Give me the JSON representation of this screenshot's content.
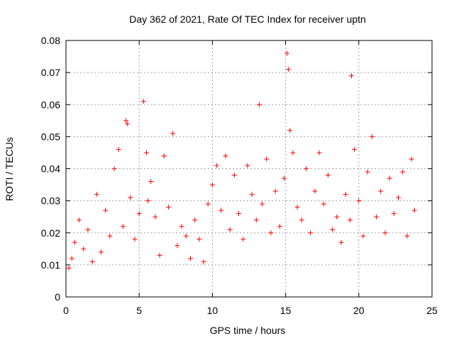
{
  "chart_data": {
    "type": "scatter",
    "title": "Day 362 of 2021, Rate Of TEC Index for receiver uptn",
    "xlabel": "GPS time / hours",
    "ylabel": "ROTI / TECUs",
    "xlim": [
      0,
      25
    ],
    "ylim": [
      0,
      0.08
    ],
    "xticks": [
      "0",
      "5",
      "10",
      "15",
      "20",
      "25"
    ],
    "yticks": [
      "0",
      "0.01",
      "0.02",
      "0.03",
      "0.04",
      "0.05",
      "0.06",
      "0.07",
      "0.08"
    ],
    "grid": true,
    "marker": "+",
    "color": "#ff0000",
    "series": [
      {
        "x": [
          0.2,
          0.4,
          0.6,
          0.9,
          1.2,
          1.5,
          1.8,
          2.1,
          2.4,
          2.7,
          3.0,
          3.3,
          3.6,
          3.9,
          4.1,
          4.2,
          4.4,
          4.7,
          5.0,
          5.3,
          5.5,
          5.6,
          5.8,
          6.1,
          6.4,
          6.7,
          7.0,
          7.3,
          7.6,
          7.9,
          8.2,
          8.5,
          8.8,
          9.1,
          9.4,
          9.7,
          10.0,
          10.3,
          10.6,
          10.9,
          11.2,
          11.5,
          11.8,
          12.1,
          12.4,
          12.7,
          13.0,
          13.2,
          13.4,
          13.7,
          14.0,
          14.3,
          14.6,
          14.9,
          15.1,
          15.2,
          15.3,
          15.5,
          15.8,
          16.1,
          16.4,
          16.7,
          17.0,
          17.3,
          17.6,
          17.9,
          18.2,
          18.5,
          18.8,
          19.1,
          19.4,
          19.5,
          19.7,
          20.0,
          20.3,
          20.6,
          20.9,
          21.2,
          21.5,
          21.8,
          22.1,
          22.4,
          22.7,
          23.0,
          23.3,
          23.6,
          23.8
        ],
        "y": [
          0.009,
          0.012,
          0.017,
          0.024,
          0.015,
          0.021,
          0.011,
          0.032,
          0.014,
          0.027,
          0.019,
          0.04,
          0.046,
          0.022,
          0.055,
          0.054,
          0.031,
          0.018,
          0.026,
          0.061,
          0.045,
          0.03,
          0.036,
          0.025,
          0.013,
          0.044,
          0.028,
          0.051,
          0.016,
          0.022,
          0.019,
          0.012,
          0.024,
          0.018,
          0.011,
          0.029,
          0.035,
          0.041,
          0.027,
          0.044,
          0.021,
          0.038,
          0.026,
          0.018,
          0.041,
          0.032,
          0.024,
          0.06,
          0.029,
          0.043,
          0.02,
          0.033,
          0.022,
          0.037,
          0.076,
          0.071,
          0.052,
          0.045,
          0.028,
          0.024,
          0.04,
          0.02,
          0.033,
          0.045,
          0.029,
          0.038,
          0.021,
          0.025,
          0.017,
          0.032,
          0.024,
          0.069,
          0.046,
          0.03,
          0.019,
          0.039,
          0.05,
          0.025,
          0.033,
          0.02,
          0.037,
          0.026,
          0.031,
          0.039,
          0.019,
          0.043,
          0.027
        ]
      }
    ]
  }
}
